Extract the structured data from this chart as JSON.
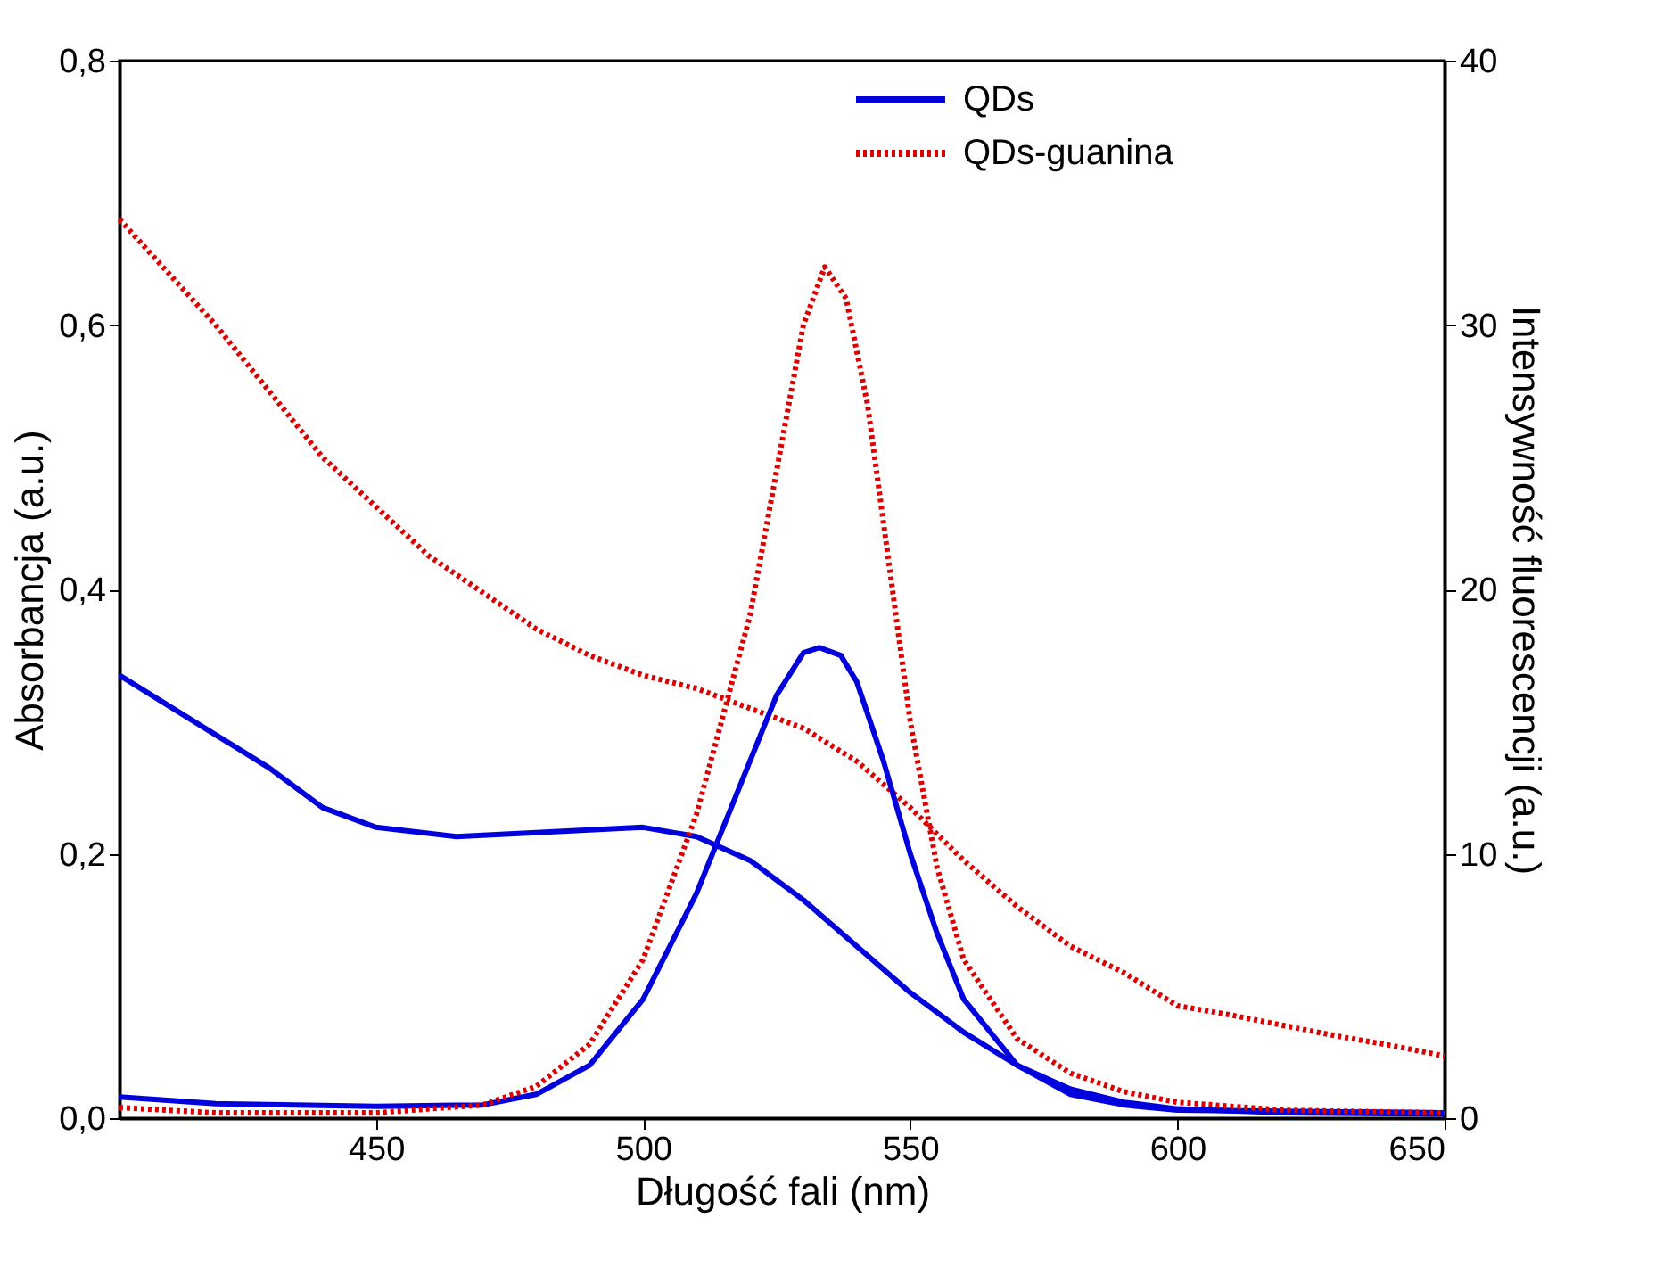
{
  "chart_data": {
    "type": "line",
    "xlabel": "Długość fali (nm)",
    "ylabel": "Absorbancja (a.u.)",
    "y2label": "Intensywność fluorescencji (a.u.)",
    "xlim": [
      402,
      650
    ],
    "xticks": [
      450,
      500,
      550,
      600,
      650
    ],
    "ylim": [
      0,
      0.8
    ],
    "yticks": [
      {
        "value": 0,
        "label": "0,0"
      },
      {
        "value": 0.2,
        "label": "0,2"
      },
      {
        "value": 0.4,
        "label": "0,4"
      },
      {
        "value": 0.6,
        "label": "0,6"
      },
      {
        "value": 0.8,
        "label": "0,8"
      }
    ],
    "y2lim": [
      0,
      40
    ],
    "y2ticks": [
      0,
      10,
      20,
      30,
      40
    ],
    "grid": false,
    "legend": "top right",
    "marker": "none",
    "series": [
      {
        "name": "QDs",
        "color": "#0000dd",
        "line_style": "solid",
        "axis": "y",
        "x": [
          402,
          420,
          430,
          440,
          450,
          465,
          480,
          500,
          510,
          520,
          530,
          540,
          550,
          560,
          570,
          580,
          590,
          600,
          620,
          650
        ],
        "values": [
          0.335,
          0.29,
          0.265,
          0.235,
          0.22,
          0.213,
          0.216,
          0.22,
          0.213,
          0.195,
          0.165,
          0.13,
          0.095,
          0.065,
          0.04,
          0.022,
          0.012,
          0.007,
          0.004,
          0.003
        ]
      },
      {
        "name": "QDs-guanina",
        "color": "#dd0000",
        "line_style": "dotted",
        "axis": "y",
        "x": [
          402,
          420,
          440,
          460,
          480,
          490,
          500,
          510,
          520,
          530,
          540,
          550,
          560,
          570,
          580,
          590,
          600,
          610,
          620,
          630,
          640,
          650
        ],
        "values": [
          0.68,
          0.6,
          0.5,
          0.425,
          0.37,
          0.35,
          0.335,
          0.325,
          0.31,
          0.295,
          0.27,
          0.235,
          0.195,
          0.16,
          0.13,
          0.11,
          0.085,
          0.078,
          0.07,
          0.062,
          0.055,
          0.047
        ]
      },
      {
        "color": "#0000dd",
        "line_style": "solid",
        "axis": "y2",
        "x": [
          402,
          420,
          450,
          470,
          480,
          490,
          500,
          510,
          520,
          525,
          530,
          533,
          537,
          540,
          545,
          550,
          555,
          560,
          570,
          580,
          590,
          600,
          650
        ],
        "values": [
          0.8,
          0.55,
          0.45,
          0.5,
          0.9,
          2.0,
          4.5,
          8.5,
          13.5,
          16,
          17.6,
          17.8,
          17.5,
          16.5,
          13.5,
          10,
          7,
          4.5,
          2.0,
          0.9,
          0.5,
          0.3,
          0.2
        ]
      },
      {
        "color": "#dd0000",
        "line_style": "dotted",
        "axis": "y2",
        "x": [
          402,
          420,
          450,
          470,
          480,
          490,
          500,
          510,
          520,
          525,
          530,
          534,
          538,
          542,
          546,
          550,
          555,
          560,
          570,
          580,
          590,
          600,
          620,
          650
        ],
        "values": [
          0.4,
          0.2,
          0.2,
          0.5,
          1.2,
          2.8,
          6,
          11.5,
          19,
          24.5,
          30,
          32.2,
          31,
          27,
          21,
          15,
          9.5,
          6,
          3,
          1.7,
          1,
          0.6,
          0.3,
          0.2
        ]
      }
    ]
  }
}
